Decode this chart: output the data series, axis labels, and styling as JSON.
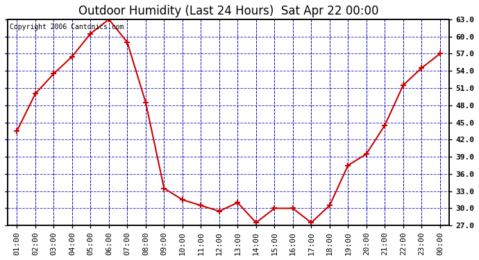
{
  "title": "Outdoor Humidity (Last 24 Hours)  Sat Apr 22 00:00",
  "copyright": "Copyright 2006 Cantonics.com",
  "x_labels": [
    "01:00",
    "02:00",
    "03:00",
    "04:00",
    "05:00",
    "06:00",
    "07:00",
    "08:00",
    "09:00",
    "10:00",
    "11:00",
    "12:00",
    "13:00",
    "14:00",
    "15:00",
    "16:00",
    "17:00",
    "18:00",
    "19:00",
    "20:00",
    "21:00",
    "22:00",
    "23:00",
    "00:00"
  ],
  "y_values": [
    43.5,
    50.0,
    53.5,
    56.5,
    60.5,
    63.0,
    59.0,
    48.5,
    33.5,
    31.5,
    30.5,
    29.5,
    31.0,
    27.5,
    30.0,
    30.0,
    27.5,
    30.5,
    37.5,
    39.5,
    44.5,
    51.5,
    54.5,
    57.0
  ],
  "ylim": [
    27.0,
    63.0
  ],
  "yticks": [
    27.0,
    30.0,
    33.0,
    36.0,
    39.0,
    42.0,
    45.0,
    48.0,
    51.0,
    54.0,
    57.0,
    60.0,
    63.0
  ],
  "line_color": "#cc0000",
  "marker_color": "#cc0000",
  "plot_bg_color": "#ffffff",
  "grid_color": "#0000bb",
  "title_fontsize": 12,
  "copyright_fontsize": 7,
  "tick_fontsize": 8
}
